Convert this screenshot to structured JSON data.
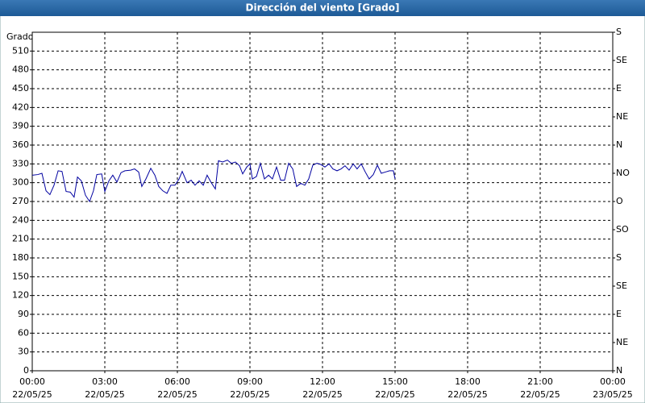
{
  "chart_data": {
    "type": "line",
    "title": "Dirección del viento [Grado]",
    "ylabel": "Grado",
    "color": "#0000a0",
    "grid": true,
    "xlim": [
      0,
      24
    ],
    "xticks": [
      {
        "value": 0,
        "label": "00:00"
      },
      {
        "value": 3,
        "label": "03:00"
      },
      {
        "value": 6,
        "label": "06:00"
      },
      {
        "value": 9,
        "label": "09:00"
      },
      {
        "value": 12,
        "label": "12:00"
      },
      {
        "value": 15,
        "label": "15:00"
      },
      {
        "value": 18,
        "label": "18:00"
      },
      {
        "value": 21,
        "label": "21:00"
      },
      {
        "value": 24,
        "label": "00:00"
      }
    ],
    "xtick_dates": [
      "22/05/25",
      "22/05/25",
      "22/05/25",
      "22/05/25",
      "22/05/25",
      "22/05/25",
      "22/05/25",
      "22/05/25",
      "23/05/25"
    ],
    "ylim": [
      0,
      540
    ],
    "yticks": [
      0,
      30,
      60,
      90,
      120,
      150,
      180,
      210,
      240,
      270,
      300,
      330,
      360,
      390,
      420,
      450,
      480,
      510
    ],
    "y2lim": [
      0,
      540
    ],
    "y2ticks": [
      {
        "value": 0,
        "label": "N"
      },
      {
        "value": 45,
        "label": "NE"
      },
      {
        "value": 90,
        "label": "E"
      },
      {
        "value": 135,
        "label": "SE"
      },
      {
        "value": 180,
        "label": "S"
      },
      {
        "value": 225,
        "label": "SO"
      },
      {
        "value": 270,
        "label": "O"
      },
      {
        "value": 315,
        "label": "NO"
      },
      {
        "value": 360,
        "label": "N"
      },
      {
        "value": 405,
        "label": "NE"
      },
      {
        "value": 450,
        "label": "E"
      },
      {
        "value": 495,
        "label": "SE"
      },
      {
        "value": 540,
        "label": "S"
      }
    ],
    "x": [
      0,
      0.23,
      0.4,
      0.57,
      0.73,
      0.9,
      1.07,
      1.23,
      1.4,
      1.57,
      1.73,
      1.87,
      2.03,
      2.2,
      2.37,
      2.53,
      2.67,
      2.87,
      3,
      3.17,
      3.33,
      3.5,
      3.67,
      3.83,
      4.07,
      4.23,
      4.4,
      4.53,
      4.7,
      4.9,
      5.07,
      5.23,
      5.4,
      5.57,
      5.73,
      5.9,
      6.07,
      6.2,
      6.4,
      6.57,
      6.73,
      6.9,
      7.07,
      7.23,
      7.4,
      7.57,
      7.7,
      7.87,
      8.07,
      8.23,
      8.4,
      8.57,
      8.7,
      8.87,
      9,
      9.1,
      9.27,
      9.43,
      9.6,
      9.77,
      9.93,
      10.1,
      10.27,
      10.43,
      10.6,
      10.77,
      10.93,
      11.1,
      11.27,
      11.43,
      11.6,
      11.77,
      11.93,
      12.1,
      12.27,
      12.43,
      12.6,
      12.77,
      12.93,
      13.1,
      13.27,
      13.43,
      13.6,
      13.77,
      13.93,
      14.1,
      14.27,
      14.43,
      14.6,
      14.77,
      14.93,
      15
    ],
    "values": [
      312,
      313,
      315,
      287,
      281,
      296,
      319,
      318,
      286,
      285,
      277,
      309,
      303,
      280,
      270,
      287,
      313,
      314,
      286,
      303,
      312,
      301,
      316,
      319,
      320,
      322,
      317,
      294,
      306,
      323,
      312,
      294,
      287,
      283,
      296,
      296,
      306,
      318,
      300,
      304,
      296,
      303,
      296,
      312,
      300,
      290,
      335,
      333,
      336,
      331,
      333,
      327,
      314,
      325,
      330,
      306,
      310,
      331,
      306,
      312,
      306,
      325,
      304,
      304,
      331,
      322,
      294,
      299,
      296,
      306,
      328,
      331,
      329,
      325,
      330,
      322,
      319,
      322,
      327,
      320,
      330,
      322,
      330,
      317,
      306,
      313,
      328,
      315,
      317,
      319,
      319,
      306
    ]
  }
}
